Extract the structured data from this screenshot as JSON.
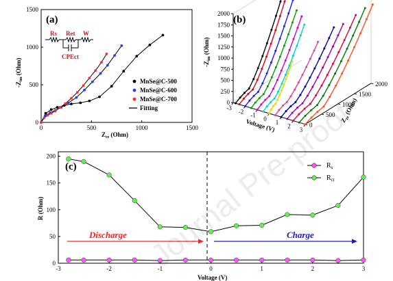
{
  "panels": {
    "a": {
      "letter": "(a)",
      "chart_data": {
        "type": "scatter",
        "xlabel": "Zre (Ohm)",
        "ylabel": "-Zim (Ohm)",
        "xlim": [
          0,
          1500
        ],
        "ylim": [
          0,
          1500
        ],
        "x_ticks": [
          0,
          500,
          1000,
          1500
        ],
        "y_ticks": [
          0,
          500,
          1000,
          1500
        ],
        "series": [
          {
            "name": "MnSe@C-500",
            "color": "#000000",
            "x": [
              0,
              45,
              100,
              160,
              230,
              300,
              390,
              480,
              580,
              700,
              820,
              950,
              1080,
              1210
            ],
            "y": [
              0,
              120,
              170,
              200,
              225,
              245,
              260,
              285,
              340,
              480,
              680,
              880,
              1030,
              1160
            ]
          },
          {
            "name": "MnSe@C-600",
            "color": "#1f3fff",
            "x": [
              0,
              40,
              90,
              140,
              200,
              270,
              350,
              430,
              510,
              590,
              660,
              730,
              800
            ],
            "y": [
              0,
              90,
              130,
              160,
              200,
              260,
              330,
              430,
              540,
              650,
              760,
              890,
              1020
            ]
          },
          {
            "name": "MnSe@C-700",
            "color": "#ff2a2a",
            "x": [
              0,
              30,
              65,
              100,
              140,
              190,
              240,
              300,
              360,
              420,
              480,
              540,
              600,
              650
            ],
            "y": [
              0,
              60,
              95,
              120,
              150,
              200,
              250,
              320,
              400,
              490,
              590,
              690,
              800,
              910
            ]
          }
        ],
        "fitting_label": "Fitting",
        "circuit": {
          "labels": [
            "Rs",
            "Ret",
            "W",
            "CPEct"
          ]
        }
      }
    },
    "b": {
      "letter": "(b)",
      "chart_data": {
        "type": "line",
        "view": "3d",
        "ylabel": "-Zim (Ohm)",
        "xlabel": "Voltage (V)",
        "zlabel": "Zre (Ohm)",
        "y_ticks": [
          0,
          250,
          500,
          750,
          1000,
          1250,
          1500,
          1750,
          2000
        ],
        "voltage_ticks": [
          -3,
          -2,
          -1,
          0,
          1,
          2,
          3
        ],
        "zre_ticks": [
          0,
          500,
          1000,
          1500,
          2000
        ],
        "curves": [
          {
            "v": -2.8,
            "color": "#000000",
            "peak": 1930,
            "zmax": 1500
          },
          {
            "v": -2.5,
            "color": "#e0001b",
            "peak": 1950,
            "zmax": 1520
          },
          {
            "v": -2.0,
            "color": "#1a1aff",
            "peak": 1720,
            "zmax": 1450
          },
          {
            "v": -1.5,
            "color": "#00a000",
            "peak": 1560,
            "zmax": 1380
          },
          {
            "v": -1.0,
            "color": "#cc00cc",
            "peak": 1480,
            "zmax": 1350
          },
          {
            "v": -0.5,
            "color": "#00d0d0",
            "peak": 1380,
            "zmax": 1250
          },
          {
            "v": 0.0,
            "color": "#dddd00",
            "peak": 850,
            "zmax": 700
          },
          {
            "v": 0.5,
            "color": "#e040a0",
            "peak": 1050,
            "zmax": 1300
          },
          {
            "v": 1.0,
            "color": "#0000aa",
            "peak": 1280,
            "zmax": 1600
          },
          {
            "v": 1.5,
            "color": "#a000a0",
            "peak": 1350,
            "zmax": 1700
          },
          {
            "v": 2.0,
            "color": "#e0003a",
            "peak": 1500,
            "zmax": 1900
          },
          {
            "v": 2.5,
            "color": "#007a00",
            "peak": 1650,
            "zmax": 2000
          },
          {
            "v": 3.0,
            "color": "#ff5020",
            "peak": 1750,
            "zmax": 2050
          }
        ]
      }
    },
    "c": {
      "letter": "(c)",
      "chart_data": {
        "type": "line",
        "xlabel": "Voltage (V)",
        "ylabel": "R (Ohm)",
        "xlim": [
          -3,
          3
        ],
        "ylim": [
          0,
          200
        ],
        "x_ticks": [
          -3,
          -2,
          -1,
          0,
          1,
          2,
          3
        ],
        "y_ticks": [
          0,
          50,
          100,
          150,
          200
        ],
        "series": [
          {
            "name": "Rs",
            "color": "#ff55ff",
            "x": [
              -2.8,
              -2.5,
              -2.0,
              -1.5,
              -1.0,
              -0.5,
              0.0,
              0.5,
              1.0,
              1.5,
              2.0,
              2.5,
              3.0
            ],
            "y": [
              6,
              6,
              6,
              6,
              5,
              6,
              6,
              6,
              6,
              6,
              6,
              5,
              6
            ]
          },
          {
            "name": "Rct",
            "color": "#66ee55",
            "x": [
              -2.8,
              -2.5,
              -2.0,
              -1.5,
              -1.0,
              -0.5,
              0.0,
              0.5,
              1.0,
              1.5,
              2.0,
              2.5,
              3.0
            ],
            "y": [
              195,
              190,
              165,
              117,
              68,
              67,
              59,
              70,
              71,
              91,
              90,
              108,
              161
            ]
          }
        ],
        "annotations": {
          "discharge": "Discharge",
          "charge": "Charge",
          "discharge_color": "#ff2020",
          "charge_color": "#1a1acc"
        }
      }
    }
  },
  "watermark": "Journal Pre-proof"
}
